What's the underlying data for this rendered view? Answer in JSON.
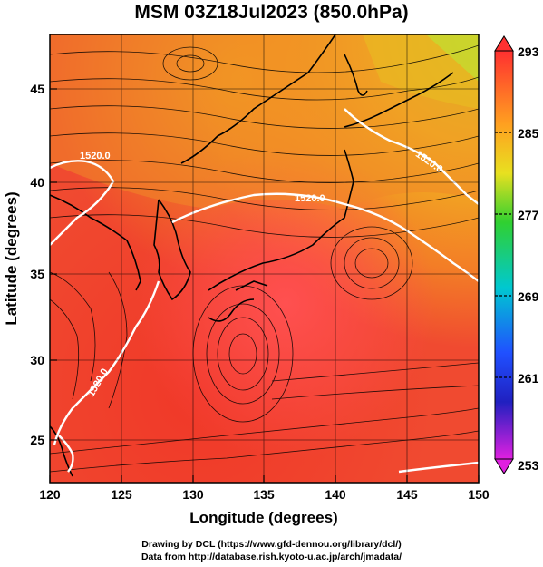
{
  "title": "MSM 03Z18Jul2023 (850.0hPa)",
  "x_axis": {
    "label": "Longitude (degrees)",
    "ticks": [
      120,
      125,
      130,
      135,
      140,
      145,
      150
    ],
    "range": [
      120,
      150
    ]
  },
  "y_axis": {
    "label": "Latitude (degrees)",
    "ticks": [
      25,
      30,
      35,
      40,
      45
    ],
    "range": [
      22.4,
      47.6
    ]
  },
  "colorbar": {
    "labels": [
      293,
      285,
      277,
      269,
      261,
      253
    ],
    "range": [
      253,
      293
    ],
    "colors": [
      "#ff4040",
      "#ff9020",
      "#e8e020",
      "#20d020",
      "#00c8c8",
      "#2060ff",
      "#2020c0",
      "#e020e0"
    ]
  },
  "contours": [
    {
      "label": "1520.0"
    },
    {
      "label": "1520.0"
    },
    {
      "label": "1520.0"
    },
    {
      "label": "1520.0"
    }
  ],
  "credits": {
    "line1": "Drawing by DCL (https://www.gfd-dennou.org/library/dcl/)",
    "line2": "Data from http://database.rish.kyoto-u.ac.jp/arch/jmadata/"
  }
}
